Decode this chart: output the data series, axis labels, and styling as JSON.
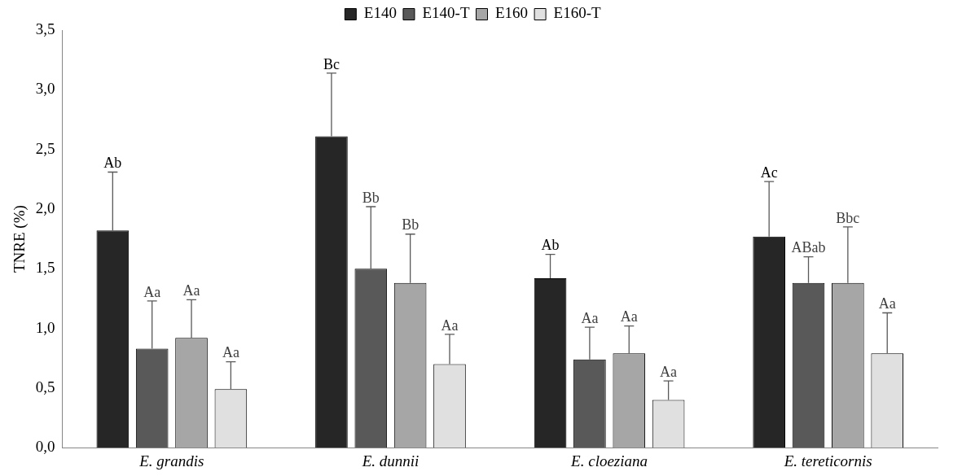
{
  "chart_data": {
    "type": "bar",
    "ylabel": "TNRE (%)",
    "categories": [
      "E. grandis",
      "E. dunnii",
      "E. cloeziana",
      "E. tereticornis"
    ],
    "series": [
      {
        "name": "E140",
        "color": "#262626",
        "values": [
          1.82,
          2.61,
          1.42,
          1.77
        ],
        "errors": [
          [
            1.82,
            2.31
          ],
          [
            2.61,
            3.14
          ],
          [
            1.42,
            1.62
          ],
          [
            1.77,
            2.23
          ]
        ]
      },
      {
        "name": "E140-T",
        "color": "#595959",
        "values": [
          0.83,
          1.5,
          0.74,
          1.38
        ],
        "errors": [
          [
            0.83,
            1.23
          ],
          [
            1.5,
            2.02
          ],
          [
            0.74,
            1.01
          ],
          [
            1.38,
            1.6
          ]
        ]
      },
      {
        "name": "E160",
        "color": "#a6a6a6",
        "values": [
          0.92,
          1.38,
          0.79,
          1.38
        ],
        "errors": [
          [
            0.92,
            1.24
          ],
          [
            1.38,
            1.79
          ],
          [
            0.79,
            1.02
          ],
          [
            1.38,
            1.85
          ]
        ]
      },
      {
        "name": "E160-T",
        "color": "#e0e0e0",
        "values": [
          0.49,
          0.7,
          0.4,
          0.79
        ],
        "errors": [
          [
            0.49,
            0.72
          ],
          [
            0.7,
            0.95
          ],
          [
            0.4,
            0.56
          ],
          [
            0.79,
            1.13
          ]
        ]
      }
    ],
    "annotations": [
      "Ab",
      "Aa",
      "Aa",
      "Aa",
      "Bc",
      "Bb",
      "Bb",
      "Aa",
      "Ab",
      "Aa",
      "Aa",
      "Aa",
      "Ac",
      "ABab",
      "Bbc",
      "Aa"
    ],
    "ylim": [
      0,
      3.5
    ],
    "yticks": [
      {
        "value": 0,
        "label": "0,0"
      },
      {
        "value": 0.5,
        "label": "0,5"
      },
      {
        "value": 1,
        "label": "1,0"
      },
      {
        "value": 1.5,
        "label": "1,5"
      },
      {
        "value": 2,
        "label": "2,0"
      },
      {
        "value": 2.5,
        "label": "2,5"
      },
      {
        "value": 3,
        "label": "3,0"
      },
      {
        "value": 3.5,
        "label": "3,5"
      }
    ],
    "grid": false,
    "legend": "top"
  }
}
